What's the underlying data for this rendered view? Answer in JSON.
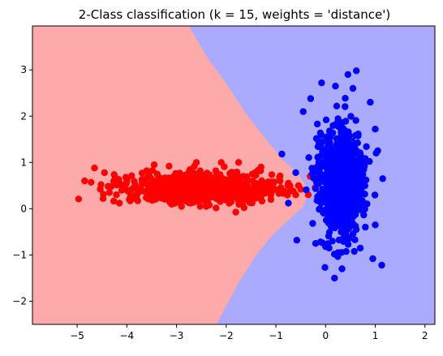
{
  "chart_data": {
    "type": "scatter",
    "title": "2-Class classification (k = 15, weights = 'distance')",
    "xlabel": "",
    "ylabel": "",
    "xlim": [
      -5.9,
      2.2
    ],
    "ylim": [
      -2.5,
      3.95
    ],
    "x_ticks": [
      -5,
      -4,
      -3,
      -2,
      -1,
      0,
      1,
      2
    ],
    "y_ticks": [
      -2,
      -1,
      0,
      1,
      2,
      3
    ],
    "grid": false,
    "legend": "none",
    "decision_regions": {
      "class_a_color": "#ffaaaa",
      "class_b_color": "#aaaaff",
      "boundary": [
        [
          -2.75,
          3.95
        ],
        [
          -2.4,
          3.3
        ],
        [
          -2.0,
          2.7
        ],
        [
          -1.6,
          2.05
        ],
        [
          -1.2,
          1.5
        ],
        [
          -0.85,
          1.05
        ],
        [
          -0.55,
          0.75
        ],
        [
          -0.4,
          0.5
        ],
        [
          -0.35,
          0.3
        ],
        [
          -0.45,
          0.05
        ],
        [
          -0.7,
          -0.2
        ],
        [
          -1.05,
          -0.55
        ],
        [
          -1.4,
          -1.0
        ],
        [
          -1.75,
          -1.6
        ],
        [
          -2.05,
          -2.2
        ],
        [
          -2.2,
          -2.5
        ]
      ]
    },
    "series": [
      {
        "color": "#ff0000",
        "cluster": {
          "center": [
            -2.5,
            0.45
          ],
          "spread": [
            0.75,
            0.16
          ],
          "count": 900
        },
        "points": [
          [
            -4.97,
            0.21
          ],
          [
            -4.85,
            0.6
          ],
          [
            -4.72,
            0.57
          ],
          [
            -4.65,
            0.88
          ],
          [
            -4.52,
            0.52
          ],
          [
            -4.48,
            0.22
          ],
          [
            -4.45,
            0.78
          ],
          [
            -4.35,
            0.35
          ],
          [
            -4.15,
            0.12
          ],
          [
            -4.02,
            0.68
          ],
          [
            -3.95,
            0.2
          ],
          [
            -3.78,
            0.17
          ],
          [
            -3.6,
            0.82
          ],
          [
            -3.45,
            0.95
          ],
          [
            -3.15,
            0.92
          ],
          [
            -2.9,
            0.05
          ],
          [
            -2.6,
            1.0
          ],
          [
            -2.4,
            0.05
          ],
          [
            -2.1,
            1.0
          ],
          [
            -1.9,
            0.15
          ],
          [
            -1.75,
            1.0
          ],
          [
            -1.5,
            0.15
          ],
          [
            -1.3,
            0.9
          ],
          [
            -1.1,
            0.2
          ],
          [
            -0.9,
            0.45
          ],
          [
            -0.75,
            0.55
          ],
          [
            -0.6,
            0.3
          ],
          [
            -0.5,
            0.42
          ],
          [
            -0.35,
            0.3
          ]
        ]
      },
      {
        "color": "#0000ff",
        "cluster": {
          "center": [
            0.3,
            0.6
          ],
          "spread": [
            0.22,
            0.55
          ],
          "count": 900
        },
        "points": [
          [
            0.62,
            2.98
          ],
          [
            0.45,
            2.9
          ],
          [
            -0.08,
            2.72
          ],
          [
            0.2,
            2.65
          ],
          [
            0.55,
            2.6
          ],
          [
            -0.3,
            2.38
          ],
          [
            0.9,
            2.3
          ],
          [
            -0.45,
            2.1
          ],
          [
            1.0,
            1.72
          ],
          [
            -0.88,
            1.18
          ],
          [
            1.05,
            1.25
          ],
          [
            -0.6,
            0.78
          ],
          [
            1.15,
            0.65
          ],
          [
            -0.75,
            0.12
          ],
          [
            1.0,
            -0.35
          ],
          [
            -0.2,
            -0.75
          ],
          [
            -0.58,
            -0.68
          ],
          [
            0.0,
            -0.82
          ],
          [
            0.25,
            -0.95
          ],
          [
            0.7,
            -0.85
          ],
          [
            0.95,
            -1.08
          ],
          [
            1.13,
            -1.22
          ],
          [
            0.33,
            -1.3
          ],
          [
            0.18,
            -1.5
          ]
        ]
      }
    ]
  }
}
